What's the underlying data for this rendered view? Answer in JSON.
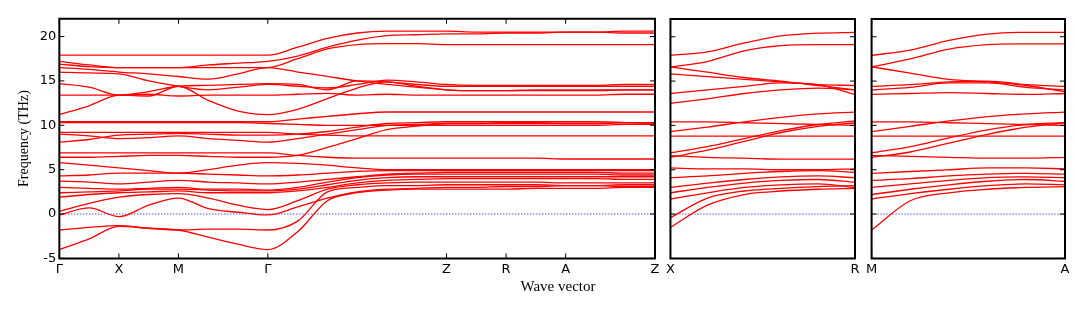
{
  "chart_data": [
    {
      "type": "line",
      "xlabel": "Wave vector",
      "ylabel": "Frequency (THz)",
      "categories": [
        "Γ",
        null,
        "X",
        null,
        "M",
        null,
        null,
        "Γ",
        null,
        null,
        null,
        null,
        null,
        "Z",
        null,
        "R",
        null,
        "A",
        null,
        null,
        "Z"
      ],
      "ylim": [
        -5,
        22
      ],
      "yticks": [
        -5,
        0,
        5,
        10,
        15,
        20
      ],
      "grid": false,
      "legend": false,
      "marker": "none",
      "line_style": "solid",
      "ref_lines": [
        {
          "axis": "y",
          "value": 0,
          "color": "#0000ff",
          "line_style": "dotted"
        }
      ],
      "series": [
        {
          "color": "#ff0000",
          "values": [
            17.9,
            17.9,
            17.9,
            17.9,
            17.9,
            17.9,
            17.9,
            17.9,
            18.8,
            19.8,
            20.4,
            20.6,
            20.6,
            20.6,
            20.5,
            20.5,
            20.5,
            20.5,
            20.5,
            20.6,
            20.6
          ]
        },
        {
          "color": "#ff0000",
          "values": [
            17.2,
            16.8,
            16.5,
            16.5,
            16.5,
            16.8,
            17.0,
            17.2,
            17.8,
            18.8,
            19.6,
            20.1,
            20.2,
            20.3,
            20.3,
            20.4,
            20.4,
            20.5,
            20.5,
            20.4,
            20.4
          ]
        },
        {
          "color": "#ff0000",
          "values": [
            16.9,
            16.6,
            16.5,
            16.5,
            16.5,
            16.5,
            16.5,
            16.5,
            17.5,
            18.6,
            19.1,
            19.2,
            19.2,
            19.1,
            19.1,
            19.1,
            19.1,
            19.1,
            19.1,
            19.1,
            19.1
          ]
        },
        {
          "color": "#ff0000",
          "values": [
            16.5,
            16.3,
            16.0,
            15.8,
            15.5,
            15.2,
            15.8,
            16.5,
            16.0,
            15.5,
            15.0,
            14.6,
            14.3,
            14.0,
            13.9,
            13.9,
            13.9,
            13.9,
            13.9,
            14.0,
            14.0
          ]
        },
        {
          "color": "#ff0000",
          "values": [
            16.0,
            15.9,
            15.8,
            15.0,
            14.4,
            14.0,
            14.3,
            14.6,
            14.4,
            14.2,
            14.6,
            15.1,
            14.9,
            14.6,
            14.5,
            14.5,
            14.5,
            14.5,
            14.5,
            14.6,
            14.6
          ]
        },
        {
          "color": "#ff0000",
          "values": [
            14.7,
            14.3,
            13.4,
            13.8,
            14.4,
            14.5,
            14.6,
            14.7,
            14.6,
            14.0,
            15.0,
            14.9,
            14.6,
            14.4,
            14.4,
            14.4,
            14.4,
            14.4,
            14.4,
            14.4,
            14.4
          ]
        },
        {
          "color": "#ff0000",
          "values": [
            13.4,
            13.4,
            13.4,
            13.5,
            13.3,
            13.4,
            13.4,
            13.4,
            13.5,
            13.6,
            13.4,
            13.5,
            13.4,
            13.4,
            13.4,
            13.4,
            13.4,
            13.4,
            13.4,
            13.5,
            13.5
          ]
        },
        {
          "color": "#ff0000",
          "values": [
            11.2,
            12.2,
            13.4,
            13.3,
            14.4,
            12.8,
            11.6,
            11.2,
            11.8,
            13.0,
            14.2,
            14.9,
            14.4,
            14.0,
            13.9,
            13.9,
            14.0,
            14.0,
            14.0,
            14.0,
            14.0
          ]
        },
        {
          "color": "#ff0000",
          "values": [
            10.4,
            10.4,
            10.4,
            10.4,
            10.4,
            10.4,
            10.4,
            10.4,
            10.7,
            11.0,
            11.3,
            11.5,
            11.5,
            11.5,
            11.5,
            11.5,
            11.5,
            11.5,
            11.5,
            11.5,
            11.5
          ]
        },
        {
          "color": "#ff0000",
          "values": [
            10.3,
            10.3,
            10.3,
            10.3,
            10.3,
            10.3,
            10.3,
            10.2,
            10.1,
            10.0,
            10.0,
            10.0,
            10.0,
            10.0,
            10.0,
            10.0,
            10.0,
            10.0,
            10.0,
            10.1,
            10.1
          ]
        },
        {
          "color": "#ff0000",
          "values": [
            9.2,
            9.2,
            9.2,
            9.2,
            9.2,
            9.2,
            9.2,
            9.2,
            9.0,
            8.9,
            8.8,
            8.8,
            8.8,
            8.8,
            8.8,
            8.8,
            8.8,
            8.8,
            8.8,
            8.8,
            8.8
          ]
        },
        {
          "color": "#ff0000",
          "values": [
            9.0,
            8.8,
            8.5,
            8.6,
            8.8,
            8.5,
            8.3,
            8.1,
            8.5,
            9.0,
            9.5,
            10.0,
            10.1,
            10.2,
            10.2,
            10.3,
            10.3,
            10.2,
            10.2,
            10.3,
            10.3
          ]
        },
        {
          "color": "#ff0000",
          "values": [
            8.1,
            8.4,
            8.9,
            9.0,
            9.1,
            9.0,
            8.9,
            8.9,
            9.0,
            9.3,
            9.8,
            10.2,
            10.3,
            10.4,
            10.4,
            10.4,
            10.4,
            10.4,
            10.4,
            10.3,
            10.2
          ]
        },
        {
          "color": "#ff0000",
          "values": [
            6.9,
            6.9,
            6.9,
            6.9,
            6.9,
            6.9,
            6.9,
            6.9,
            6.6,
            6.4,
            6.3,
            6.3,
            6.3,
            6.3,
            6.3,
            6.3,
            6.3,
            6.2,
            6.2,
            6.2,
            6.2
          ]
        },
        {
          "color": "#ff0000",
          "values": [
            6.4,
            6.4,
            6.5,
            6.6,
            6.6,
            6.5,
            6.4,
            6.4,
            6.6,
            7.5,
            8.5,
            9.5,
            9.9,
            10.2,
            10.2,
            10.2,
            10.2,
            10.2,
            10.2,
            10.3,
            10.3
          ]
        },
        {
          "color": "#ff0000",
          "values": [
            5.8,
            5.5,
            5.2,
            4.9,
            4.6,
            5.0,
            5.5,
            5.8,
            5.7,
            5.5,
            5.2,
            5.0,
            5.0,
            5.0,
            5.0,
            5.0,
            5.0,
            5.0,
            5.0,
            5.0,
            5.0
          ]
        },
        {
          "color": "#ff0000",
          "values": [
            4.3,
            4.4,
            4.6,
            4.6,
            4.6,
            4.5,
            4.4,
            4.3,
            4.4,
            4.6,
            4.8,
            4.9,
            4.9,
            4.9,
            4.9,
            4.9,
            4.9,
            4.9,
            4.9,
            4.9,
            4.9
          ]
        },
        {
          "color": "#ff0000",
          "values": [
            3.7,
            3.6,
            3.4,
            3.6,
            3.8,
            3.6,
            3.5,
            3.4,
            3.6,
            3.9,
            4.2,
            4.5,
            4.6,
            4.7,
            4.7,
            4.7,
            4.7,
            4.7,
            4.7,
            4.6,
            4.6
          ]
        },
        {
          "color": "#ff0000",
          "values": [
            3.0,
            2.9,
            2.8,
            2.9,
            3.0,
            2.8,
            2.8,
            2.7,
            3.0,
            3.6,
            4.1,
            4.4,
            4.5,
            4.5,
            4.5,
            4.5,
            4.5,
            4.5,
            4.5,
            4.4,
            4.4
          ]
        },
        {
          "color": "#ff0000",
          "values": [
            2.4,
            2.5,
            2.6,
            2.8,
            2.8,
            2.7,
            2.6,
            2.6,
            2.8,
            3.3,
            3.8,
            4.1,
            4.2,
            4.2,
            4.2,
            4.2,
            4.2,
            4.2,
            4.2,
            4.2,
            4.2
          ]
        },
        {
          "color": "#ff0000",
          "values": [
            1.9,
            2.2,
            2.4,
            2.5,
            2.6,
            2.4,
            2.4,
            2.4,
            2.6,
            3.0,
            3.5,
            3.8,
            3.9,
            4.0,
            4.0,
            4.0,
            4.0,
            4.0,
            4.0,
            3.9,
            3.9
          ]
        },
        {
          "color": "#ff0000",
          "values": [
            0.3,
            1.2,
            1.9,
            2.2,
            2.3,
            1.8,
            1.0,
            0.5,
            1.5,
            2.8,
            3.3,
            3.5,
            3.6,
            3.6,
            3.6,
            3.6,
            3.6,
            3.5,
            3.5,
            3.5,
            3.5
          ]
        },
        {
          "color": "#ff0000",
          "values": [
            -0.1,
            0.7,
            -0.3,
            1.0,
            1.8,
            0.6,
            0.2,
            -0.1,
            0.8,
            1.8,
            2.5,
            2.8,
            2.9,
            3.0,
            3.0,
            3.1,
            3.1,
            3.2,
            3.2,
            3.3,
            3.3
          ]
        },
        {
          "color": "#ff0000",
          "values": [
            -1.8,
            -1.5,
            -1.3,
            -1.6,
            -1.8,
            -1.7,
            -1.7,
            -1.8,
            -0.8,
            2.5,
            3.0,
            3.2,
            3.2,
            3.3,
            3.3,
            3.3,
            3.3,
            3.2,
            3.2,
            3.1,
            3.1
          ]
        },
        {
          "color": "#ff0000",
          "values": [
            -4.0,
            -2.8,
            -1.4,
            -1.6,
            -1.8,
            -2.6,
            -3.4,
            -4.0,
            -2.0,
            1.5,
            2.4,
            2.7,
            2.8,
            2.8,
            2.8,
            2.8,
            2.9,
            2.9,
            2.9,
            3.0,
            3.0
          ]
        }
      ]
    },
    {
      "type": "line",
      "categories": [
        "X",
        null,
        null,
        null,
        null,
        "R"
      ],
      "ylim": [
        -5,
        22
      ],
      "yticks": [
        -5,
        0,
        5,
        10,
        15,
        20
      ],
      "tick_labels": "x",
      "grid": false,
      "legend": false,
      "marker": "none",
      "line_style": "solid",
      "ref_lines": [
        {
          "axis": "y",
          "value": 0,
          "color": "#0000ff",
          "line_style": "dotted"
        }
      ],
      "series": [
        {
          "color": "#ff0000",
          "values": [
            17.9,
            18.3,
            19.3,
            20.1,
            20.4,
            20.5
          ]
        },
        {
          "color": "#ff0000",
          "values": [
            16.6,
            17.2,
            18.4,
            19.0,
            19.1,
            19.1
          ]
        },
        {
          "color": "#ff0000",
          "values": [
            16.6,
            16.0,
            15.4,
            15.0,
            14.5,
            14.0
          ]
        },
        {
          "color": "#ff0000",
          "values": [
            15.8,
            15.5,
            15.2,
            14.9,
            14.6,
            14.5
          ]
        },
        {
          "color": "#ff0000",
          "values": [
            13.6,
            14.0,
            14.4,
            14.8,
            14.6,
            13.5
          ]
        },
        {
          "color": "#ff0000",
          "values": [
            12.5,
            13.0,
            13.6,
            14.0,
            14.2,
            14.0
          ]
        },
        {
          "color": "#ff0000",
          "values": [
            10.4,
            10.4,
            10.3,
            10.2,
            10.1,
            10.0
          ]
        },
        {
          "color": "#ff0000",
          "values": [
            9.3,
            9.8,
            10.4,
            10.9,
            11.3,
            11.5
          ]
        },
        {
          "color": "#ff0000",
          "values": [
            8.8,
            8.8,
            8.8,
            8.8,
            8.8,
            8.8
          ]
        },
        {
          "color": "#ff0000",
          "values": [
            6.9,
            7.6,
            8.5,
            9.4,
            10.1,
            10.5
          ]
        },
        {
          "color": "#ff0000",
          "values": [
            6.4,
            7.2,
            8.2,
            9.2,
            9.9,
            10.3
          ]
        },
        {
          "color": "#ff0000",
          "values": [
            6.6,
            6.4,
            6.3,
            6.2,
            6.2,
            6.2
          ]
        },
        {
          "color": "#ff0000",
          "values": [
            5.2,
            5.1,
            5.1,
            5.0,
            5.0,
            5.1
          ]
        },
        {
          "color": "#ff0000",
          "values": [
            4.1,
            4.3,
            4.6,
            4.8,
            4.9,
            4.7
          ]
        },
        {
          "color": "#ff0000",
          "values": [
            3.0,
            3.5,
            3.9,
            4.2,
            4.3,
            4.1
          ]
        },
        {
          "color": "#ff0000",
          "values": [
            2.4,
            3.0,
            3.5,
            3.8,
            3.9,
            3.6
          ]
        },
        {
          "color": "#ff0000",
          "values": [
            1.7,
            2.4,
            3.0,
            3.3,
            3.4,
            3.0
          ]
        },
        {
          "color": "#ff0000",
          "values": [
            -0.4,
            1.8,
            2.6,
            2.9,
            3.1,
            3.2
          ]
        },
        {
          "color": "#ff0000",
          "values": [
            -1.5,
            1.0,
            2.2,
            2.6,
            2.8,
            2.9
          ]
        }
      ]
    },
    {
      "type": "line",
      "categories": [
        "M",
        null,
        null,
        null,
        null,
        "A"
      ],
      "ylim": [
        -5,
        22
      ],
      "yticks": [
        -5,
        0,
        5,
        10,
        15,
        20
      ],
      "tick_labels": "x",
      "grid": false,
      "legend": false,
      "marker": "none",
      "line_style": "solid",
      "ref_lines": [
        {
          "axis": "y",
          "value": 0,
          "color": "#0000ff",
          "line_style": "dotted"
        }
      ],
      "series": [
        {
          "color": "#ff0000",
          "values": [
            17.9,
            18.5,
            19.6,
            20.3,
            20.5,
            20.5
          ]
        },
        {
          "color": "#ff0000",
          "values": [
            16.6,
            17.5,
            18.6,
            19.1,
            19.2,
            19.2
          ]
        },
        {
          "color": "#ff0000",
          "values": [
            16.6,
            15.9,
            15.2,
            14.9,
            14.5,
            13.8
          ]
        },
        {
          "color": "#ff0000",
          "values": [
            14.4,
            14.6,
            14.9,
            15.0,
            14.6,
            14.4
          ]
        },
        {
          "color": "#ff0000",
          "values": [
            14.0,
            14.3,
            14.8,
            14.8,
            14.3,
            14.0
          ]
        },
        {
          "color": "#ff0000",
          "values": [
            13.5,
            13.6,
            13.7,
            13.6,
            13.5,
            13.6
          ]
        },
        {
          "color": "#ff0000",
          "values": [
            10.4,
            10.4,
            10.3,
            10.2,
            10.1,
            10.0
          ]
        },
        {
          "color": "#ff0000",
          "values": [
            9.3,
            9.9,
            10.5,
            11.0,
            11.3,
            11.5
          ]
        },
        {
          "color": "#ff0000",
          "values": [
            8.8,
            8.8,
            8.8,
            8.8,
            8.8,
            8.8
          ]
        },
        {
          "color": "#ff0000",
          "values": [
            6.9,
            7.6,
            8.6,
            9.5,
            10.1,
            10.3
          ]
        },
        {
          "color": "#ff0000",
          "values": [
            6.4,
            7.0,
            8.0,
            9.0,
            9.8,
            10.3
          ]
        },
        {
          "color": "#ff0000",
          "values": [
            6.6,
            6.5,
            6.4,
            6.3,
            6.3,
            6.4
          ]
        },
        {
          "color": "#ff0000",
          "values": [
            4.6,
            4.8,
            5.0,
            5.2,
            5.2,
            5.1
          ]
        },
        {
          "color": "#ff0000",
          "values": [
            3.8,
            4.0,
            4.3,
            4.5,
            4.6,
            4.5
          ]
        },
        {
          "color": "#ff0000",
          "values": [
            3.0,
            3.4,
            3.8,
            4.1,
            4.2,
            4.1
          ]
        },
        {
          "color": "#ff0000",
          "values": [
            2.2,
            2.8,
            3.3,
            3.7,
            3.9,
            3.7
          ]
        },
        {
          "color": "#ff0000",
          "values": [
            1.7,
            2.3,
            2.8,
            3.2,
            3.4,
            3.3
          ]
        },
        {
          "color": "#ff0000",
          "values": [
            -1.8,
            1.5,
            2.4,
            2.8,
            3.0,
            3.1
          ]
        }
      ]
    }
  ]
}
